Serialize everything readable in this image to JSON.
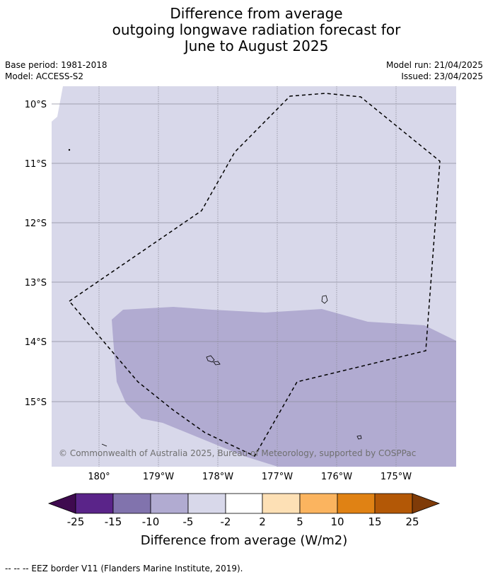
{
  "title": {
    "line1": "Difference from average",
    "line2": "outgoing longwave radiation forecast for",
    "line3": "June to August 2025"
  },
  "meta": {
    "base_period": "Base period: 1981-2018",
    "model": "Model: ACCESS-S2",
    "model_run": "Model run: 21/04/2025",
    "issued": "Issued: 23/04/2025"
  },
  "map": {
    "lat_labels": [
      "10°S",
      "11°S",
      "12°S",
      "13°S",
      "14°S",
      "15°S"
    ],
    "lon_labels": [
      "180°",
      "179°W",
      "178°W",
      "177°W",
      "176°W",
      "175°W"
    ],
    "copyright": "© Commonwealth of Australia 2025, Bureau of Meteorology, supported by COSPPac",
    "colors": {
      "background_class": "#d8d8ea",
      "anomaly_class": "#b1abd1",
      "gridline": "#8e8e9c"
    }
  },
  "colorbar": {
    "ticks": [
      "-25",
      "-15",
      "-10",
      "-5",
      "-2",
      "2",
      "5",
      "10",
      "15",
      "25"
    ],
    "label": "Difference from average (W/m2)",
    "colors": [
      "#3f0a4f",
      "#5a2489",
      "#8173ad",
      "#b1abd1",
      "#d8d8ea",
      "#ffffff",
      "#fde0b5",
      "#fbb45f",
      "#e08214",
      "#b35806",
      "#7f3b08"
    ]
  },
  "footnote": "--  --  -- EEZ border V11 (Flanders Marine Institute, 2019)."
}
